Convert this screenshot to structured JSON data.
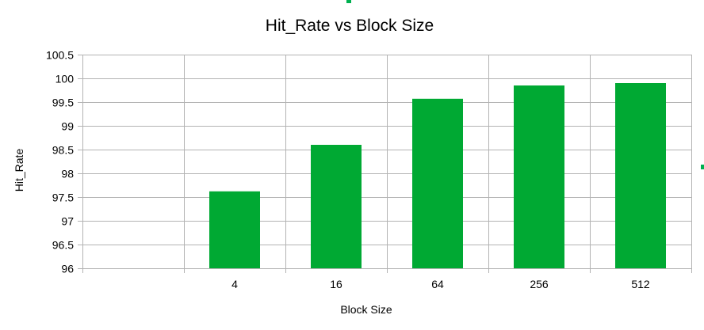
{
  "chart_data": {
    "type": "bar",
    "title": "Hit_Rate vs Block Size",
    "xlabel": "Block Size",
    "ylabel": "Hit_Rate",
    "categories": [
      "",
      "4",
      "16",
      "64",
      "256",
      "512"
    ],
    "values": [
      null,
      97.62,
      98.6,
      99.57,
      99.85,
      99.9
    ],
    "ylim": [
      96,
      100.5
    ],
    "yticks": [
      "96",
      "96.5",
      "97",
      "97.5",
      "98",
      "98.5",
      "99",
      "99.5",
      "100",
      "100.5"
    ],
    "grid": true,
    "legend": "none",
    "bar_color": "#00a933"
  }
}
